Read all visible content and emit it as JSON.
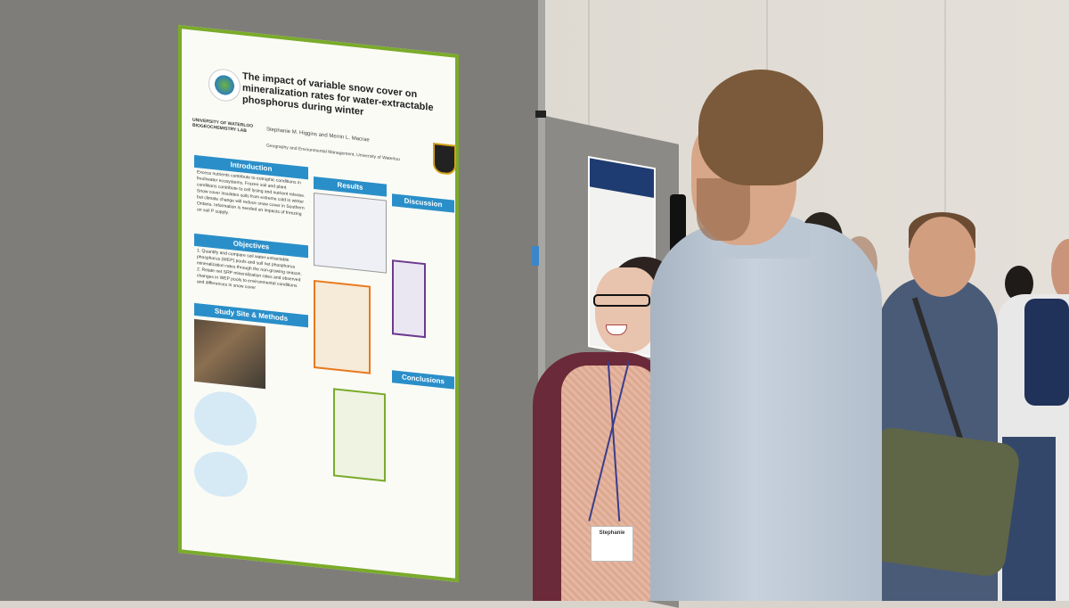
{
  "poster": {
    "title": "The impact of variable snow cover on mineralization rates for water-extractable phosphorus during winter",
    "authors": "Stephanie M. Higgins and Merrin L. Macrae",
    "affiliation": "Geography and Environmental Management, University of Waterloo",
    "lab_line1": "UNIVERSITY OF WATERLOO",
    "lab_line2": "BIOGEOCHEMISTRY LAB",
    "sections": {
      "introduction": "Introduction",
      "objectives": "Objectives",
      "study_site": "Study Site & Methods",
      "results": "Results",
      "discussion": "Discussion",
      "conclusions": "Conclusions"
    },
    "intro_text": "Excess nutrients contribute to eutrophic conditions in freshwater ecosystems. Frozen soil and plant conditions contribute to cell lysing and nutrient release. Snow cover insulates soils from extreme cold in winter but climate change will reduce snow cover in Southern Ontario. Information is needed on impacts of freezing on soil P supply.",
    "objectives_text": "1. Quantify and compare soil water-extractable phosphorus (WEP) pools and soil net phosphorus mineralization rates through the non-growing season. 2. Relate net SRP mineralization rates and observed changes in WEP pools to environmental conditions and differences in snow cover"
  },
  "badge_name": "Stephanie",
  "colors": {
    "poster_border": "#7aab2a",
    "section_header": "#2a8fc9",
    "accent_orange": "#e87a1d"
  }
}
